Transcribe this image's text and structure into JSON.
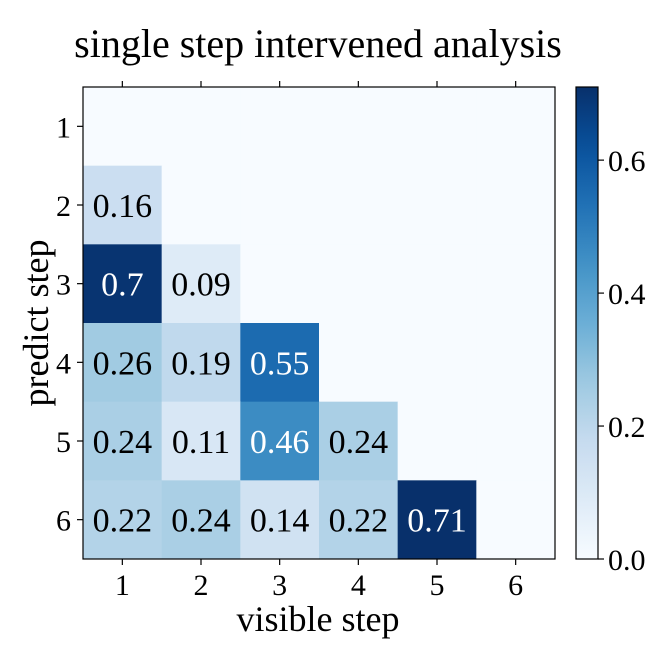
{
  "chart_data": {
    "type": "heatmap",
    "title": "single step intervened analysis",
    "xlabel": "visible step",
    "ylabel": "predict step",
    "x_categories": [
      "1",
      "2",
      "3",
      "4",
      "5",
      "6"
    ],
    "y_categories": [
      "1",
      "2",
      "3",
      "4",
      "5",
      "6"
    ],
    "values": [
      [
        null,
        null,
        null,
        null,
        null,
        null
      ],
      [
        0.16,
        null,
        null,
        null,
        null,
        null
      ],
      [
        0.7,
        0.09,
        null,
        null,
        null,
        null
      ],
      [
        0.26,
        0.19,
        0.55,
        null,
        null,
        null
      ],
      [
        0.24,
        0.11,
        0.46,
        0.24,
        null,
        null
      ],
      [
        0.22,
        0.24,
        0.14,
        0.22,
        0.71,
        null
      ]
    ],
    "cell_labels": [
      [
        "",
        "",
        "",
        "",
        "",
        ""
      ],
      [
        "0.16",
        "",
        "",
        "",
        "",
        ""
      ],
      [
        "0.7",
        "0.09",
        "",
        "",
        "",
        ""
      ],
      [
        "0.26",
        "0.19",
        "0.55",
        "",
        "",
        ""
      ],
      [
        "0.24",
        "0.11",
        "0.46",
        "0.24",
        "",
        ""
      ],
      [
        "0.22",
        "0.24",
        "0.14",
        "0.22",
        "0.71",
        ""
      ]
    ],
    "colormap": "Blues",
    "vmin": 0.0,
    "vmax": 0.71,
    "colorbar_ticks": [
      "0.0",
      "0.2",
      "0.4",
      "0.6"
    ],
    "colorbar_tick_values": [
      0.0,
      0.2,
      0.4,
      0.6
    ],
    "empty_cell_color": "#f7fbff",
    "grid": false,
    "legend": "colorbar-right"
  }
}
